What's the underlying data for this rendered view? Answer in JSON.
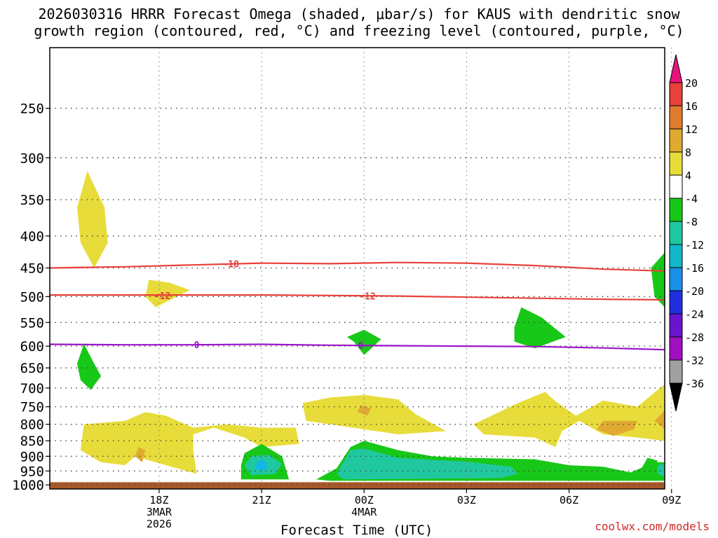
{
  "chart_data": {
    "type": "contour",
    "title_line1": "2026030316 HRRR Forecast Omega (shaded, μbar/s) for KAUS with dendritic snow",
    "title_line2": "growth region (contoured, red, °C) and freezing level (contoured, purple, °C)",
    "xlabel": "Forecast Time (UTC)",
    "ylabel": "",
    "y_scale": "log-pressure",
    "y_range_hPa": [
      200,
      1015
    ],
    "y_ticks": [
      250,
      300,
      350,
      400,
      450,
      500,
      550,
      600,
      650,
      700,
      750,
      800,
      850,
      900,
      950,
      1000
    ],
    "x_range_hours": [
      -2.2,
      15.8
    ],
    "x_ticks": [
      {
        "hour": 1,
        "label": "18Z",
        "sub1": "3MAR",
        "sub2": "2026"
      },
      {
        "hour": 4,
        "label": "21Z",
        "sub1": "",
        "sub2": ""
      },
      {
        "hour": 7,
        "label": "00Z",
        "sub1": "4MAR",
        "sub2": ""
      },
      {
        "hour": 10,
        "label": "03Z",
        "sub1": "",
        "sub2": ""
      },
      {
        "hour": 13,
        "label": "06Z",
        "sub1": "",
        "sub2": ""
      },
      {
        "hour": 16,
        "label": "09Z",
        "sub1": "",
        "sub2": ""
      }
    ],
    "grid": true,
    "contours": [
      {
        "label": "-18",
        "color": "#e8403a",
        "label_at": [
          [
            3.1,
            443
          ]
        ],
        "points": [
          [
            -2.2,
            450
          ],
          [
            0,
            448
          ],
          [
            2,
            445
          ],
          [
            4,
            442
          ],
          [
            6,
            443
          ],
          [
            8,
            441
          ],
          [
            10,
            442
          ],
          [
            12,
            446
          ],
          [
            14,
            452
          ],
          [
            15.8,
            455
          ]
        ]
      },
      {
        "label": "-12",
        "color": "#e8403a",
        "label_at": [
          [
            1.1,
            498
          ],
          [
            7.1,
            499
          ]
        ],
        "points": [
          [
            -2.2,
            497
          ],
          [
            0,
            497
          ],
          [
            2,
            497
          ],
          [
            4,
            497
          ],
          [
            6,
            498
          ],
          [
            8,
            499
          ],
          [
            10,
            501
          ],
          [
            12,
            503
          ],
          [
            14,
            505
          ],
          [
            15.8,
            506
          ]
        ]
      },
      {
        "label": "0",
        "color": "#9a14c8",
        "label_at": [
          [
            2.1,
            597
          ],
          [
            6.9,
            598
          ]
        ],
        "points": [
          [
            -2.2,
            596
          ],
          [
            0,
            597
          ],
          [
            2,
            597
          ],
          [
            4,
            596
          ],
          [
            6,
            598
          ],
          [
            8,
            599
          ],
          [
            10,
            600
          ],
          [
            12,
            601
          ],
          [
            14,
            604
          ],
          [
            15.8,
            608
          ]
        ]
      }
    ],
    "shaded_regions": [
      {
        "value_bin": "4 to 8",
        "color": "#e8dc3a",
        "points": [
          [
            -1.1,
            315
          ],
          [
            -0.6,
            360
          ],
          [
            -0.5,
            410
          ],
          [
            -0.9,
            450
          ],
          [
            -1.3,
            410
          ],
          [
            -1.4,
            360
          ]
        ]
      },
      {
        "value_bin": "4 to 8",
        "color": "#e8dc3a",
        "points": [
          [
            0.7,
            470
          ],
          [
            1.3,
            475
          ],
          [
            1.9,
            488
          ],
          [
            0.9,
            520
          ],
          [
            0.6,
            500
          ]
        ]
      },
      {
        "value_bin": "-8 to -4",
        "color": "#18c818",
        "points": [
          [
            -1.2,
            595
          ],
          [
            -0.9,
            640
          ],
          [
            -0.7,
            670
          ],
          [
            -1.0,
            705
          ],
          [
            -1.3,
            680
          ],
          [
            -1.4,
            640
          ]
        ]
      },
      {
        "value_bin": "-8 to -4",
        "color": "#18c818",
        "points": [
          [
            7.0,
            565
          ],
          [
            7.5,
            585
          ],
          [
            7.0,
            620
          ],
          [
            6.7,
            590
          ],
          [
            6.5,
            580
          ]
        ]
      },
      {
        "value_bin": "-8 to -4",
        "color": "#18c818",
        "points": [
          [
            11.6,
            520
          ],
          [
            12.2,
            540
          ],
          [
            12.9,
            580
          ],
          [
            12.0,
            605
          ],
          [
            11.4,
            590
          ],
          [
            11.4,
            560
          ]
        ]
      },
      {
        "value_bin": "-8 to -4",
        "color": "#18c818",
        "points": [
          [
            15.8,
            425
          ],
          [
            15.8,
            520
          ],
          [
            15.5,
            500
          ],
          [
            15.4,
            450
          ]
        ]
      },
      {
        "value_bin": "4 to 8",
        "color": "#e8dc3a",
        "points": [
          [
            -1.2,
            800
          ],
          [
            0,
            790
          ],
          [
            0.6,
            765
          ],
          [
            1.2,
            775
          ],
          [
            2,
            810
          ],
          [
            3,
            800
          ],
          [
            4,
            810
          ],
          [
            5,
            810
          ],
          [
            5.1,
            860
          ],
          [
            4,
            870
          ],
          [
            3.5,
            840
          ],
          [
            2.6,
            810
          ],
          [
            2,
            830
          ],
          [
            2,
            880
          ],
          [
            2.1,
            960
          ],
          [
            1.2,
            930
          ],
          [
            0.3,
            900
          ],
          [
            0,
            930
          ],
          [
            -0.7,
            920
          ],
          [
            -1.3,
            880
          ]
        ]
      },
      {
        "value_bin": "4 to 8",
        "color": "#e8dc3a",
        "points": [
          [
            5.2,
            740
          ],
          [
            6,
            725
          ],
          [
            7,
            718
          ],
          [
            8,
            730
          ],
          [
            8.5,
            770
          ],
          [
            9.4,
            820
          ],
          [
            8,
            830
          ],
          [
            6,
            800
          ],
          [
            5.3,
            790
          ]
        ]
      },
      {
        "value_bin": "4 to 8",
        "color": "#e8dc3a",
        "points": [
          [
            10.2,
            800
          ],
          [
            11.5,
            740
          ],
          [
            12.3,
            710
          ],
          [
            12.6,
            735
          ],
          [
            13.2,
            775
          ],
          [
            14,
            733
          ],
          [
            15,
            750
          ],
          [
            15.8,
            690
          ],
          [
            15.8,
            850
          ],
          [
            15,
            840
          ],
          [
            14,
            830
          ],
          [
            13.3,
            790
          ],
          [
            12.8,
            820
          ],
          [
            12.6,
            870
          ],
          [
            12,
            840
          ],
          [
            10.5,
            830
          ]
        ]
      },
      {
        "value_bin": "8 to 12",
        "color": "#e0aa30",
        "points": [
          [
            0.4,
            870
          ],
          [
            0.6,
            880
          ],
          [
            0.5,
            920
          ],
          [
            0.3,
            900
          ]
        ]
      },
      {
        "value_bin": "8 to 12",
        "color": "#e0aa30",
        "points": [
          [
            6.9,
            745
          ],
          [
            7.2,
            755
          ],
          [
            7.1,
            775
          ],
          [
            6.8,
            765
          ]
        ]
      },
      {
        "value_bin": "8 to 12",
        "color": "#e0aa30",
        "points": [
          [
            14,
            790
          ],
          [
            15,
            790
          ],
          [
            14.9,
            815
          ],
          [
            14.3,
            835
          ],
          [
            13.8,
            815
          ]
        ]
      },
      {
        "value_bin": "8 to 12",
        "color": "#e0aa30",
        "points": [
          [
            15.8,
            760
          ],
          [
            15.5,
            790
          ],
          [
            15.8,
            815
          ]
        ]
      },
      {
        "value_bin": "-8 to -4",
        "color": "#18c818",
        "points": [
          [
            3.5,
            890
          ],
          [
            4,
            860
          ],
          [
            4.6,
            900
          ],
          [
            4.8,
            980
          ],
          [
            3.4,
            980
          ],
          [
            3.4,
            930
          ]
        ]
      },
      {
        "value_bin": "-8 to -4",
        "color": "#18c818",
        "points": [
          [
            6.2,
            940
          ],
          [
            6.6,
            870
          ],
          [
            7,
            850
          ],
          [
            8,
            880
          ],
          [
            9,
            900
          ],
          [
            10,
            905
          ],
          [
            12,
            910
          ],
          [
            13,
            930
          ],
          [
            14,
            935
          ],
          [
            14.8,
            955
          ],
          [
            15.5,
            920
          ],
          [
            15.8,
            920
          ],
          [
            15.8,
            985
          ],
          [
            6.0,
            985
          ],
          [
            5.6,
            980
          ]
        ]
      },
      {
        "value_bin": "-8 to -4",
        "color": "#18c818",
        "points": [
          [
            15.3,
            905
          ],
          [
            15.6,
            915
          ],
          [
            15.4,
            950
          ],
          [
            15.1,
            945
          ]
        ]
      },
      {
        "value_bin": "-12 to -8",
        "color": "#20c8a0",
        "points": [
          [
            6.2,
            960
          ],
          [
            6.6,
            880
          ],
          [
            7,
            875
          ],
          [
            8,
            905
          ],
          [
            9,
            912
          ],
          [
            10,
            918
          ],
          [
            11.3,
            935
          ],
          [
            11.5,
            960
          ],
          [
            11,
            975
          ],
          [
            6.4,
            980
          ]
        ]
      },
      {
        "value_bin": "-12 to -8",
        "color": "#20c8a0",
        "points": [
          [
            3.5,
            930
          ],
          [
            3.7,
            900
          ],
          [
            4.2,
            895
          ],
          [
            4.6,
            925
          ],
          [
            4.4,
            960
          ],
          [
            3.7,
            965
          ]
        ]
      },
      {
        "value_bin": "-12 to -8",
        "color": "#20c8a0",
        "points": [
          [
            15.6,
            930
          ],
          [
            15.8,
            925
          ],
          [
            15.8,
            970
          ],
          [
            15.6,
            960
          ]
        ]
      },
      {
        "value_bin": "-16 to -12",
        "color": "#10b8e8",
        "points": [
          [
            3.9,
            915
          ],
          [
            4.1,
            915
          ],
          [
            4.2,
            940
          ],
          [
            4.0,
            950
          ],
          [
            3.8,
            940
          ]
        ]
      }
    ],
    "ground": {
      "color": "#a8582a",
      "top_hPa": 990
    },
    "colorbar": {
      "values": [
        "20",
        "16",
        "12",
        "8",
        "4",
        "-4",
        "-8",
        "-12",
        "-16",
        "-20",
        "-24",
        "-28",
        "-32",
        "-36"
      ],
      "colors": [
        "#e8147e",
        "#e8403a",
        "#e07c2e",
        "#e0aa30",
        "#e8dc3a",
        "#ffffff",
        "#18c818",
        "#20c8a0",
        "#10b8c8",
        "#1890e8",
        "#2030e0",
        "#6a14d0",
        "#a010c0",
        "#a0a0a0",
        "#000000"
      ]
    }
  },
  "footer": {
    "credit": "coolwx.com/models"
  }
}
